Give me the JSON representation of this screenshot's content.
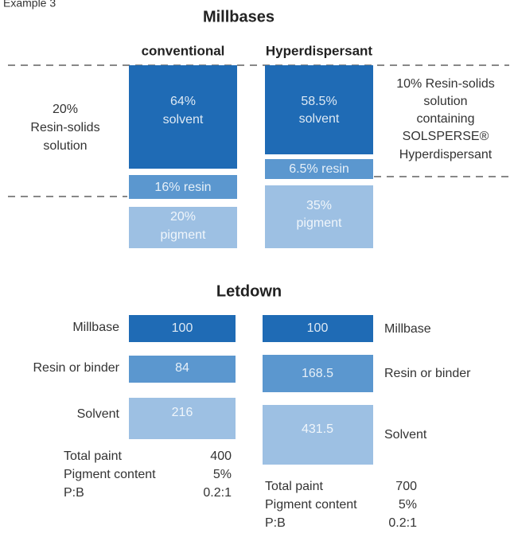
{
  "label": "Example 3",
  "millbases": {
    "title": "Millbases",
    "conventional": {
      "heading": "conventional",
      "boxes": [
        {
          "lines": [
            "64%",
            "solvent"
          ]
        },
        {
          "lines": [
            "16% resin"
          ]
        },
        {
          "lines": [
            "20%",
            "pigment"
          ]
        }
      ],
      "note": [
        "20%",
        "Resin-solids",
        "solution"
      ]
    },
    "hyperdispersant": {
      "heading": "Hyperdispersant",
      "boxes": [
        {
          "lines": [
            "58.5%",
            "solvent"
          ]
        },
        {
          "lines": [
            "6.5% resin"
          ]
        },
        {
          "lines": [
            "35%",
            "pigment"
          ]
        }
      ],
      "note": [
        "10% Resin-solids",
        "solution",
        "containing",
        "SOLSPERSE®",
        "Hyperdispersant"
      ]
    }
  },
  "letdown": {
    "title": "Letdown",
    "conventional": {
      "rows": [
        {
          "label": "Millbase",
          "value": "100"
        },
        {
          "label": "Resin or binder",
          "value": "84"
        },
        {
          "label": "Solvent",
          "value": "216"
        }
      ],
      "totals": [
        {
          "label": "Total paint",
          "value": "400"
        },
        {
          "label": "Pigment content",
          "value": "5%"
        },
        {
          "label": "P:B",
          "value": "0.2:1"
        }
      ]
    },
    "hyperdispersant": {
      "rows": [
        {
          "label": "Millbase",
          "value": "100"
        },
        {
          "label": "Resin or binder",
          "value": "168.5"
        },
        {
          "label": "Solvent",
          "value": "431.5"
        }
      ],
      "totals": [
        {
          "label": "Total paint",
          "value": "700"
        },
        {
          "label": "Pigment content",
          "value": "5%"
        },
        {
          "label": "P:B",
          "value": "0.2:1"
        }
      ]
    }
  }
}
